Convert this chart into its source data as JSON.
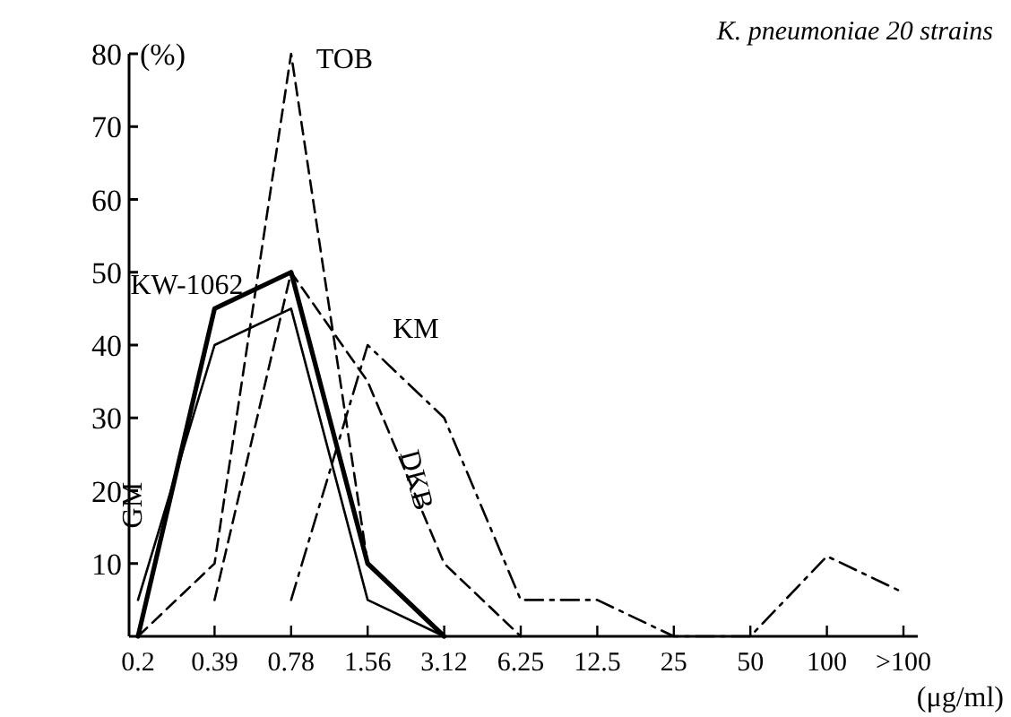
{
  "chart_data": {
    "type": "line",
    "title": "K. pneumoniae 20  strains",
    "ylabel": "(%)",
    "xlabel": "(μg/ml)",
    "categories": [
      "0.2",
      "0.39",
      "0.78",
      "1.56",
      "3.12",
      "6.25",
      "12.5",
      "25",
      "50",
      "100",
      ">100"
    ],
    "ylim": [
      0,
      80
    ],
    "yticks": [
      10,
      20,
      30,
      40,
      50,
      60,
      70,
      80
    ],
    "grid": false,
    "marker": "none",
    "series": [
      {
        "name": "KW-1062",
        "color": "#000000",
        "line_style": "solid",
        "values": [
          0,
          45,
          50,
          10,
          0,
          null,
          null,
          null,
          null,
          null,
          null
        ]
      },
      {
        "name": "GM",
        "color": "#000000",
        "line_style": "solid",
        "values": [
          5,
          40,
          45,
          5,
          0,
          null,
          null,
          null,
          null,
          null,
          null
        ]
      },
      {
        "name": "TOB",
        "color": "#000000",
        "line_style": "dashed",
        "values": [
          0,
          10,
          80,
          10,
          0,
          null,
          null,
          null,
          null,
          null,
          null
        ]
      },
      {
        "name": "DKB",
        "color": "#000000",
        "line_style": "dashed",
        "values": [
          null,
          5,
          50,
          35,
          10,
          0,
          null,
          null,
          null,
          null,
          null
        ]
      },
      {
        "name": "KM",
        "color": "#000000",
        "line_style": "dashdot",
        "values": [
          null,
          null,
          5,
          40,
          30,
          5,
          5,
          0,
          0,
          11,
          6
        ]
      }
    ]
  }
}
